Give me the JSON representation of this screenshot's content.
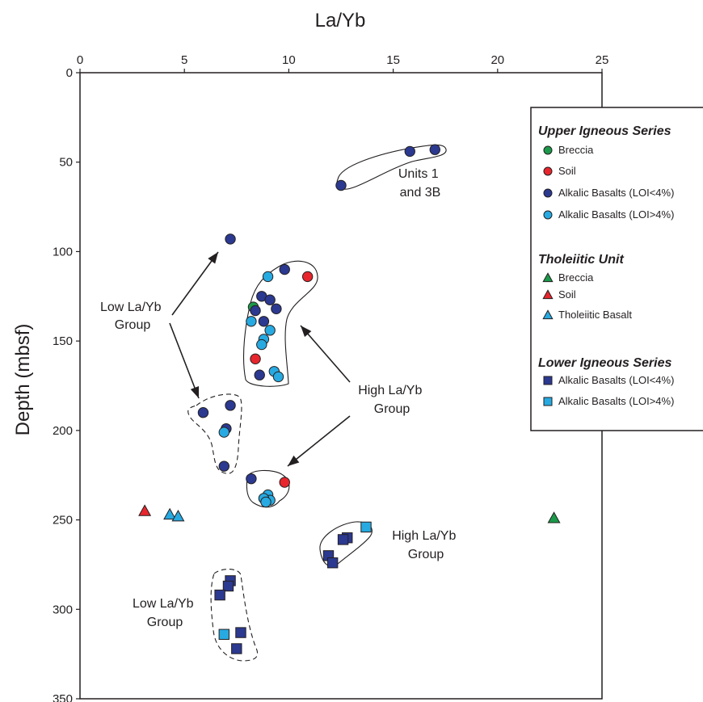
{
  "chart_data": {
    "type": "scatter",
    "xlabel": "La/Yb",
    "ylabel": "Depth (mbsf)",
    "xlim": [
      0,
      25
    ],
    "ylim": [
      0,
      350
    ],
    "y_inverted": true,
    "x_axis_position": "top",
    "x_ticks": [
      "0",
      "5",
      "10",
      "15",
      "20",
      "25"
    ],
    "y_ticks": [
      "0",
      "50",
      "100",
      "150",
      "200",
      "250",
      "300",
      "350"
    ],
    "grid": false,
    "legend_position": "right",
    "legend": {
      "groups": [
        {
          "title": "Upper Igneous Series",
          "items": [
            {
              "label": "Breccia",
              "marker": "circle",
              "color": "#1a9a4a"
            },
            {
              "label": "Soil",
              "marker": "circle",
              "color": "#e8262d"
            },
            {
              "label": "Alkalic Basalts (LOI<4%)",
              "marker": "circle",
              "color": "#2b3990"
            },
            {
              "label": "Alkalic Basalts (LOI>4%)",
              "marker": "circle",
              "color": "#27aae1"
            }
          ]
        },
        {
          "title": "Tholeiitic Unit",
          "items": [
            {
              "label": "Breccia",
              "marker": "triangle",
              "color": "#1a9a4a"
            },
            {
              "label": "Soil",
              "marker": "triangle",
              "color": "#e8262d"
            },
            {
              "label": "Tholeiitic Basalt",
              "marker": "triangle",
              "color": "#27aae1"
            }
          ]
        },
        {
          "title": "Lower Igneous Series",
          "items": [
            {
              "label": "Alkalic Basalts (LOI<4%)",
              "marker": "square",
              "color": "#2b3990"
            },
            {
              "label": "Alkalic Basalts (LOI>4%)",
              "marker": "square",
              "color": "#27aae1"
            }
          ]
        }
      ]
    },
    "series": [
      {
        "name": "Upper Igneous Series - Breccia",
        "marker": "circle",
        "color": "#1a9a4a",
        "x": [
          8.3
        ],
        "y": [
          131
        ]
      },
      {
        "name": "Upper Igneous Series - Soil",
        "marker": "circle",
        "color": "#e8262d",
        "x": [
          10.9,
          8.4,
          9.8
        ],
        "y": [
          114,
          160,
          229
        ]
      },
      {
        "name": "Upper Igneous Series - Alkalic Basalts (LOI<4%)",
        "marker": "circle",
        "color": "#2b3990",
        "x": [
          15.8,
          17.0,
          12.5,
          7.2,
          9.8,
          8.7,
          9.1,
          8.4,
          8.8,
          9.4,
          8.6,
          7.2,
          5.9,
          7.0,
          6.9,
          8.2
        ],
        "y": [
          44,
          43,
          63,
          93,
          110,
          125,
          127,
          133,
          139,
          132,
          169,
          186,
          190,
          199,
          220,
          227
        ]
      },
      {
        "name": "Upper Igneous Series - Alkalic Basalts (LOI>4%)",
        "marker": "circle",
        "color": "#27aae1",
        "x": [
          9.0,
          8.2,
          9.1,
          8.8,
          8.7,
          9.3,
          9.5,
          6.9,
          9.0,
          9.1,
          8.8,
          8.9
        ],
        "y": [
          114,
          139,
          144,
          149,
          152,
          167,
          170,
          201,
          236,
          239,
          238,
          240
        ]
      },
      {
        "name": "Tholeiitic Unit - Soil",
        "marker": "triangle",
        "color": "#e8262d",
        "x": [
          3.1
        ],
        "y": [
          245
        ]
      },
      {
        "name": "Tholeiitic Unit - Breccia",
        "marker": "triangle",
        "color": "#1a9a4a",
        "x": [
          22.7
        ],
        "y": [
          249
        ]
      },
      {
        "name": "Tholeiitic Unit - Tholeiitic Basalt",
        "marker": "triangle",
        "color": "#27aae1",
        "x": [
          4.3,
          4.7
        ],
        "y": [
          247,
          248
        ]
      },
      {
        "name": "Lower Igneous Series - Alkalic Basalts (LOI<4%)",
        "marker": "square",
        "color": "#2b3990",
        "x": [
          12.8,
          12.6,
          11.9,
          12.1,
          7.2,
          7.1,
          6.7,
          7.7,
          7.5
        ],
        "y": [
          260,
          261,
          270,
          274,
          284,
          287,
          292,
          313,
          322
        ]
      },
      {
        "name": "Lower Igneous Series - Alkalic Basalts (LOI>4%)",
        "marker": "square",
        "color": "#27aae1",
        "x": [
          13.7,
          6.9
        ],
        "y": [
          254,
          314
        ]
      }
    ],
    "annotations": [
      {
        "line1": "Units 1",
        "line2": "and 3B"
      },
      {
        "line1": "Low La/Yb",
        "line2": "Group"
      },
      {
        "line1": "High La/Yb",
        "line2": "Group"
      },
      {
        "line1": "High La/Yb",
        "line2": "Group"
      },
      {
        "line1": "Low La/Yb",
        "line2": "Group"
      }
    ]
  }
}
